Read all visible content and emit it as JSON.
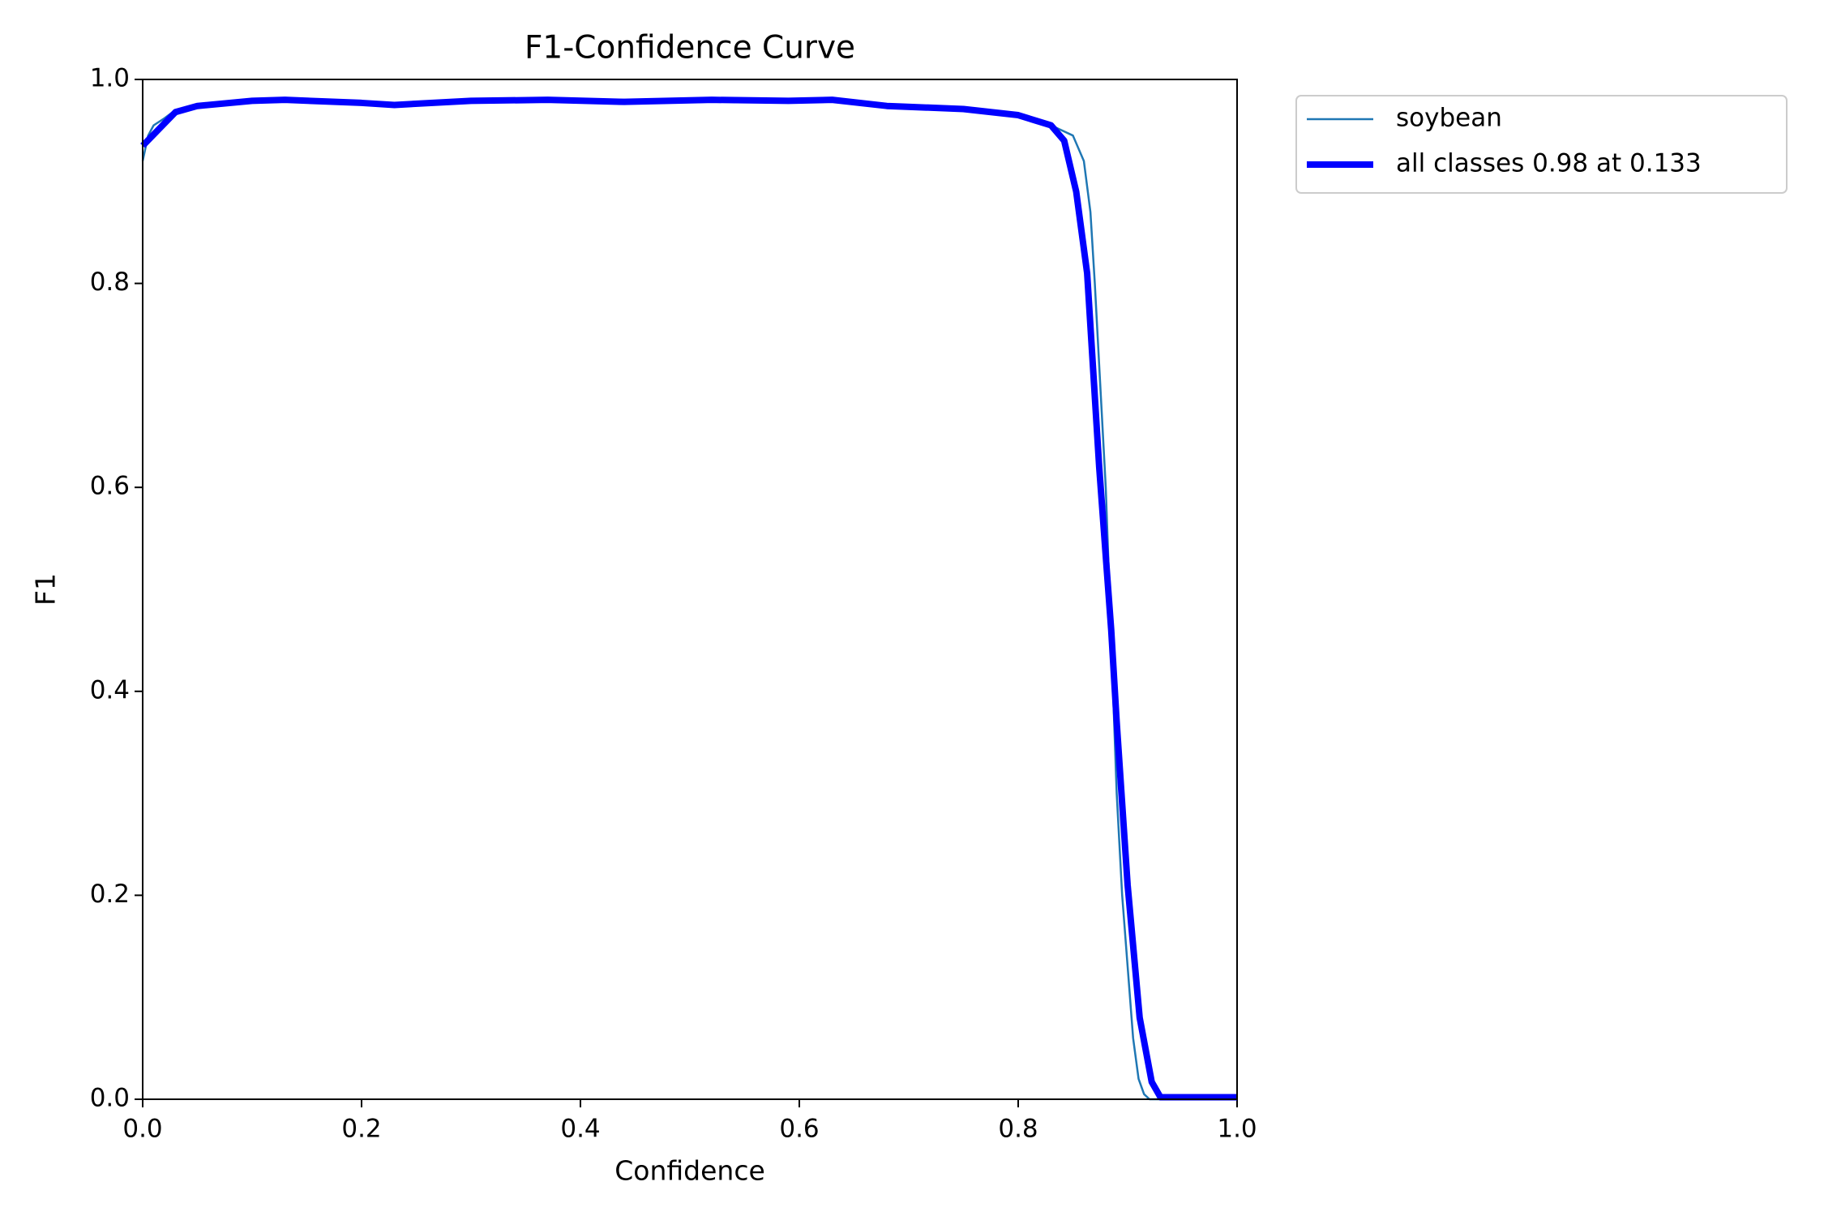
{
  "chart_data": {
    "type": "line",
    "title": "F1-Confidence Curve",
    "x_label": "Confidence",
    "y_label": "F1",
    "xlim": [
      0,
      1
    ],
    "ylim": [
      0,
      1
    ],
    "xticks": [
      {
        "value": 0,
        "label": "0.0"
      },
      0.2,
      0.4,
      0.6,
      0.8,
      {
        "value": 1,
        "label": "1.0"
      }
    ],
    "yticks": [
      {
        "value": 0,
        "label": "0.0"
      },
      0.2,
      0.4,
      0.6,
      0.8,
      {
        "value": 1,
        "label": "1.0"
      }
    ],
    "grid": false,
    "legend": "outside-upper-right",
    "series": [
      {
        "name": "soybean",
        "color": "#1f77b4",
        "width": "thin",
        "x": [
          0,
          0.005,
          0.01,
          0.02,
          0.03,
          0.05,
          0.1,
          0.13,
          0.2,
          0.23,
          0.3,
          0.37,
          0.44,
          0.52,
          0.59,
          0.63,
          0.68,
          0.75,
          0.8,
          0.83,
          0.84,
          0.85,
          0.86,
          0.866,
          0.87,
          0.875,
          0.88,
          0.885,
          0.89,
          0.895,
          0.9,
          0.905,
          0.91,
          0.915,
          0.92,
          1.0
        ],
        "values": [
          0.92,
          0.945,
          0.955,
          0.962,
          0.97,
          0.974,
          0.979,
          0.98,
          0.977,
          0.975,
          0.979,
          0.98,
          0.978,
          0.98,
          0.979,
          0.98,
          0.974,
          0.971,
          0.965,
          0.955,
          0.95,
          0.945,
          0.92,
          0.87,
          0.8,
          0.7,
          0.6,
          0.45,
          0.3,
          0.2,
          0.13,
          0.06,
          0.02,
          0.005,
          0,
          0
        ]
      },
      {
        "name": "all classes 0.98 at 0.133",
        "color": "#0000ff",
        "width": "thick",
        "x": [
          0,
          0.03,
          0.05,
          0.1,
          0.13,
          0.2,
          0.23,
          0.3,
          0.37,
          0.44,
          0.52,
          0.59,
          0.63,
          0.68,
          0.75,
          0.8,
          0.83,
          0.842,
          0.853,
          0.863,
          0.874,
          0.885,
          0.89,
          0.9,
          0.911,
          0.922,
          0.93,
          1.0
        ],
        "values": [
          0.935,
          0.968,
          0.974,
          0.979,
          0.98,
          0.977,
          0.975,
          0.979,
          0.98,
          0.978,
          0.98,
          0.979,
          0.98,
          0.974,
          0.971,
          0.965,
          0.955,
          0.94,
          0.89,
          0.81,
          0.62,
          0.46,
          0.37,
          0.21,
          0.08,
          0.017,
          0.002,
          0.002
        ]
      }
    ]
  }
}
